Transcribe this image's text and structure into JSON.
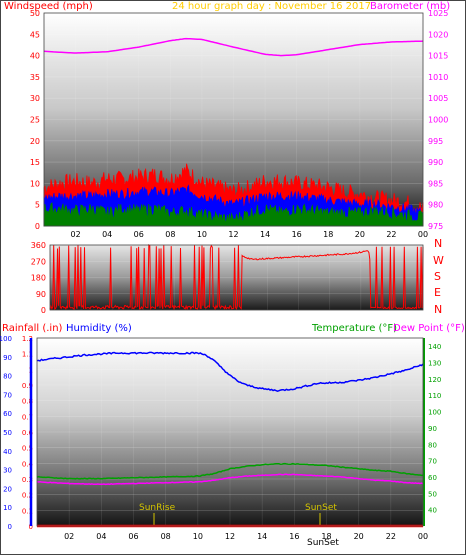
{
  "colors": {
    "wind": "#ff0000",
    "gust": "#ff1a1a",
    "wind_avg": "#0000ff",
    "wind_low": "#008000",
    "baro": "#ff00ff",
    "title": "#ffcc00",
    "humidity": "#0000ff",
    "rain": "#ff0000",
    "temp": "#00a000",
    "dewpoint": "#ff00ff",
    "winddir": "#ff0000"
  },
  "header": {
    "left": "Windspeed (mph)",
    "center": "24 hour graph day : November 16 2017",
    "right": "Barometer (mb)"
  },
  "dir_labels": [
    "N",
    "W",
    "S",
    "E",
    "N"
  ],
  "bottom_header": {
    "rain": "Rainfall (.in)",
    "humidity": "Humidity (%)",
    "temp": "Temperature (°F)",
    "dew": "Dew Point (°F)"
  },
  "annotations": {
    "sunrise": "SunRise",
    "sunset": "SunSet",
    "sunset_bottom": "SunSet"
  },
  "chart_data": [
    {
      "type": "line",
      "x_ticks": [
        "02",
        "04",
        "06",
        "08",
        "10",
        "12",
        "14",
        "16",
        "18",
        "20",
        "22",
        "00"
      ],
      "y_left_label": "Windspeed (mph)",
      "y_left_ticks": [
        0,
        5,
        10,
        15,
        20,
        25,
        30,
        35,
        40,
        45,
        50
      ],
      "y_left_lim": [
        0,
        50
      ],
      "y_right_label": "Barometer (mb)",
      "y_right_ticks": [
        975,
        980,
        985,
        990,
        995,
        1000,
        1005,
        1010,
        1015,
        1020,
        1025
      ],
      "y_right_lim": [
        975,
        1025
      ],
      "series": [
        {
          "name": "Barometer",
          "axis": "right",
          "x": [
            0,
            2,
            4,
            6,
            8,
            9,
            10,
            12,
            14,
            15,
            16,
            18,
            20,
            22,
            24
          ],
          "values": [
            1016,
            1015.6,
            1015.9,
            1017,
            1018.5,
            1019,
            1018.8,
            1017,
            1015.3,
            1015,
            1015.2,
            1016.4,
            1017.6,
            1018.2,
            1018.4
          ]
        },
        {
          "name": "Windspeed",
          "axis": "left",
          "x": [
            0,
            1,
            2,
            3,
            4,
            5,
            6,
            7,
            8,
            9,
            10,
            11,
            12,
            13,
            14,
            15,
            16,
            17,
            18,
            19,
            20,
            21,
            22,
            23,
            24
          ],
          "values": [
            9,
            10,
            10.5,
            10,
            11,
            11,
            11.5,
            12,
            11,
            13,
            10,
            9,
            8,
            9,
            10.5,
            10.5,
            10,
            9.5,
            9,
            8,
            7.5,
            6.5,
            6,
            5.5,
            4
          ]
        },
        {
          "name": "Average",
          "axis": "left",
          "x": [
            0,
            1,
            2,
            3,
            4,
            5,
            6,
            7,
            8,
            9,
            10,
            11,
            12,
            13,
            14,
            15,
            16,
            17,
            18,
            19,
            20,
            21,
            22,
            23,
            24
          ],
          "values": [
            6.5,
            7,
            7,
            7,
            7.5,
            7.5,
            8,
            8,
            7.5,
            8.5,
            7,
            6,
            5,
            6,
            7,
            7,
            7,
            6.5,
            6,
            5.5,
            5,
            5,
            4.5,
            4,
            3
          ]
        },
        {
          "name": "Low",
          "axis": "left",
          "x": [
            0,
            1,
            2,
            3,
            4,
            5,
            6,
            7,
            8,
            9,
            10,
            11,
            12,
            13,
            14,
            15,
            16,
            17,
            18,
            19,
            20,
            21,
            22,
            23,
            24
          ],
          "values": [
            4,
            4,
            3.5,
            4,
            3,
            4,
            3.5,
            4,
            3,
            3.5,
            2.5,
            2,
            1.5,
            3,
            4,
            3,
            4,
            3.5,
            3,
            3,
            3,
            3.5,
            3,
            2.5,
            2
          ]
        }
      ]
    },
    {
      "type": "scatter",
      "x_ticks": [
        "02",
        "04",
        "06",
        "08",
        "10",
        "12",
        "14",
        "16",
        "18",
        "20",
        "22",
        "00"
      ],
      "y_ticks": [
        0,
        90,
        180,
        270,
        360
      ],
      "y_lim": [
        0,
        360
      ],
      "series": [
        {
          "name": "Wind direction",
          "x": [
            0,
            1,
            2,
            3,
            4,
            5,
            6,
            7,
            8,
            9,
            10,
            11,
            12,
            12.3,
            13,
            14,
            15,
            16,
            17,
            18,
            19,
            20,
            20.5,
            21,
            22,
            23,
            24
          ],
          "values": [
            10,
            5,
            15,
            10,
            8,
            12,
            10,
            15,
            20,
            10,
            15,
            10,
            20,
            300,
            280,
            285,
            290,
            295,
            300,
            305,
            310,
            320,
            330,
            10,
            12,
            8,
            10
          ]
        }
      ]
    },
    {
      "type": "line",
      "x_ticks": [
        "02",
        "04",
        "06",
        "08",
        "10",
        "12",
        "14",
        "16",
        "18",
        "20",
        "22",
        "00"
      ],
      "y_rain_ticks": [
        0,
        0.1,
        0.2,
        0.3,
        0.4,
        0.5,
        0.6,
        0.7,
        0.8,
        0.9,
        1,
        1.1,
        1.2
      ],
      "y_rain_lim": [
        0,
        1.2
      ],
      "y_hum_ticks": [
        0,
        10,
        20,
        30,
        40,
        50,
        60,
        70,
        80,
        90,
        100
      ],
      "y_hum_lim": [
        0,
        100
      ],
      "y_temp_ticks": [
        40,
        50,
        60,
        70,
        80,
        90,
        100,
        110,
        120,
        130,
        140
      ],
      "y_temp_lim": [
        30,
        145
      ],
      "series": [
        {
          "name": "Humidity",
          "axis": "hum",
          "x": [
            0,
            1,
            2,
            3,
            4,
            5,
            6,
            7,
            8,
            9,
            10,
            10.5,
            11,
            11.5,
            12,
            12.5,
            13,
            13.5,
            14,
            14.5,
            15,
            15.5,
            16,
            16.5,
            17,
            17.5,
            18,
            19,
            20,
            21,
            22,
            23,
            24
          ],
          "values": [
            88,
            89,
            90,
            91,
            91.5,
            92,
            92,
            92,
            92,
            92,
            92,
            91,
            88,
            84,
            80,
            77,
            75,
            74,
            73,
            72.5,
            72,
            72.5,
            73,
            74,
            75,
            76,
            76,
            76.5,
            77.5,
            79,
            81,
            83,
            86
          ]
        },
        {
          "name": "Temperature",
          "axis": "temp",
          "x": [
            0,
            2,
            4,
            6,
            8,
            10,
            11,
            12,
            13,
            14,
            15,
            16,
            17,
            18,
            19,
            20,
            21,
            22,
            23,
            24
          ],
          "values": [
            60,
            59,
            59,
            59.5,
            60,
            60.5,
            62,
            65,
            66.5,
            67.5,
            68,
            68,
            67.5,
            67,
            66,
            65,
            64,
            63.5,
            62,
            61
          ]
        },
        {
          "name": "Dew Point",
          "axis": "temp",
          "x": [
            0,
            2,
            4,
            6,
            8,
            10,
            11,
            12,
            13,
            14,
            15,
            16,
            17,
            18,
            19,
            20,
            21,
            22,
            23,
            24
          ],
          "values": [
            57,
            56,
            55.5,
            56,
            56.5,
            57,
            58,
            59.5,
            60.5,
            61,
            61.5,
            61.5,
            61,
            60.5,
            60,
            59,
            58,
            57.5,
            56.5,
            56
          ]
        },
        {
          "name": "Rainfall",
          "axis": "rain",
          "x": [
            0,
            24
          ],
          "values": [
            0,
            0
          ]
        }
      ]
    }
  ]
}
